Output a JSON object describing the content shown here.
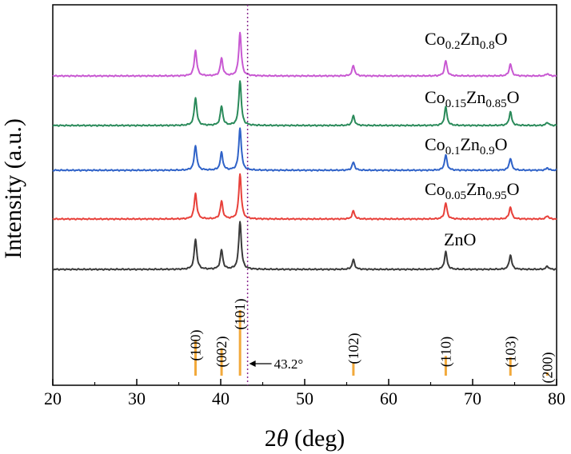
{
  "chart_data": {
    "type": "line",
    "title": "",
    "xlabel_main": "2",
    "xlabel_italic": "θ",
    "xlabel_unit": " (deg)",
    "ylabel": "Intensity (a.u.)",
    "xlim": [
      20,
      80
    ],
    "x_ticks": [
      20,
      30,
      40,
      50,
      60,
      70,
      80
    ],
    "yticks_shown": false,
    "grid": false,
    "peak_positions": [
      37.0,
      40.1,
      42.3,
      55.8,
      66.8,
      74.5,
      78.9
    ],
    "series": [
      {
        "name": "ZnO",
        "label_parts": [
          {
            "t": "ZnO"
          }
        ],
        "color": "#3a3a3a",
        "peak_heights": [
          38,
          24,
          60,
          12,
          22,
          18,
          4
        ]
      },
      {
        "name": "Co0.05Zn0.95O",
        "label_parts": [
          {
            "t": "Co"
          },
          {
            "t": "0.05",
            "sub": true
          },
          {
            "t": "Zn"
          },
          {
            "t": "0.95",
            "sub": true
          },
          {
            "t": "O"
          }
        ],
        "color": "#e8403a",
        "peak_heights": [
          32,
          22,
          56,
          10,
          20,
          15,
          4
        ]
      },
      {
        "name": "Co0.1Zn0.9O",
        "label_parts": [
          {
            "t": "Co"
          },
          {
            "t": "0.1",
            "sub": true
          },
          {
            "t": "Zn"
          },
          {
            "t": "0.9",
            "sub": true
          },
          {
            "t": "O"
          }
        ],
        "color": "#2f62c8",
        "peak_heights": [
          31,
          22,
          53,
          10,
          19,
          15,
          3
        ]
      },
      {
        "name": "Co0.15Zn0.85O",
        "label_parts": [
          {
            "t": "Co"
          },
          {
            "t": "0.15",
            "sub": true
          },
          {
            "t": "Zn"
          },
          {
            "t": "0.85",
            "sub": true
          },
          {
            "t": "O"
          }
        ],
        "color": "#2a8a5a",
        "peak_heights": [
          35,
          24,
          56,
          12,
          23,
          17,
          4
        ]
      },
      {
        "name": "Co0.2Zn0.8O",
        "label_parts": [
          {
            "t": "Co"
          },
          {
            "t": "0.2",
            "sub": true
          },
          {
            "t": "Zn"
          },
          {
            "t": "0.8",
            "sub": true
          },
          {
            "t": "O"
          }
        ],
        "color": "#c858d2",
        "peak_heights": [
          32,
          22,
          54,
          13,
          19,
          15,
          3
        ]
      }
    ],
    "reference_lines": {
      "color": "#f2a93b",
      "items": [
        {
          "x": 37.0,
          "label": "(100)",
          "rel_height": 0.55
        },
        {
          "x": 40.1,
          "label": "(002)",
          "rel_height": 0.42
        },
        {
          "x": 42.3,
          "label": "(101)",
          "rel_height": 1.0
        },
        {
          "x": 55.8,
          "label": "(102)",
          "rel_height": 0.2
        },
        {
          "x": 66.8,
          "label": "(110)",
          "rel_height": 0.3
        },
        {
          "x": 74.5,
          "label": "(103)",
          "rel_height": 0.28
        },
        {
          "x": 78.9,
          "label": "(200)",
          "rel_height": 0.05
        }
      ]
    },
    "annotation": {
      "x": 43.2,
      "label": "43.2°",
      "line_color": "#8a2b8f",
      "line_style": "dotted"
    }
  }
}
